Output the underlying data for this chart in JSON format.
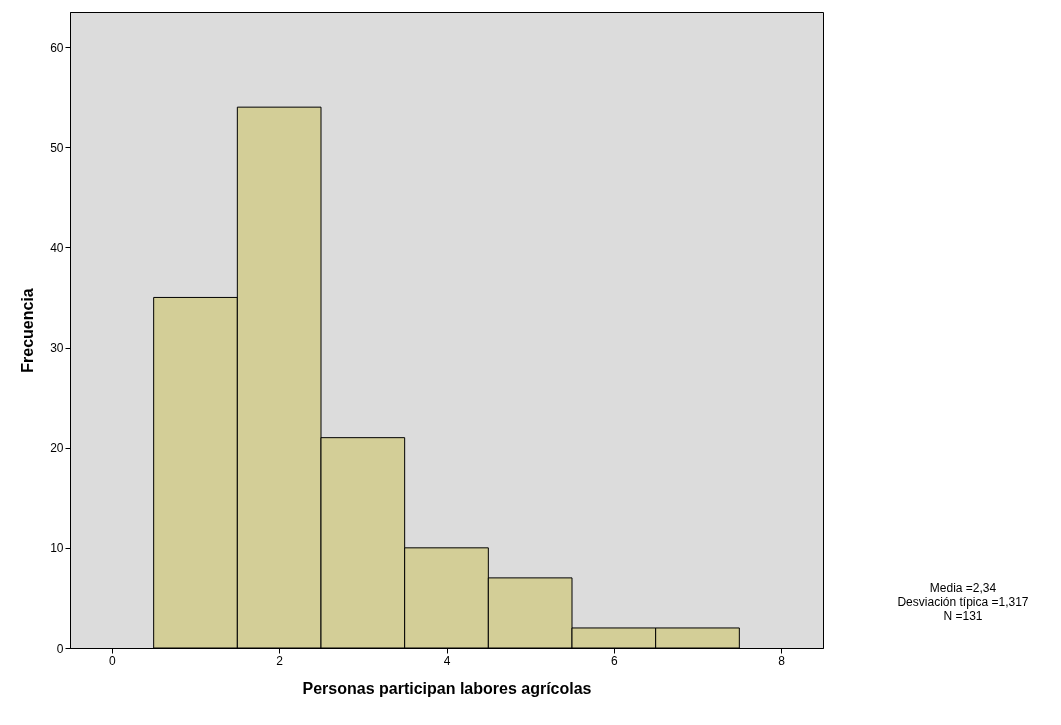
{
  "chart_data": {
    "type": "histogram",
    "bins": [
      0.5,
      1.5,
      2.5,
      3.5,
      4.5,
      5.5,
      6.5,
      7.5
    ],
    "values": [
      35,
      54,
      21,
      10,
      7,
      2,
      2
    ],
    "color": "#d3ce97",
    "xlabel": "Personas participan labores agrícolas",
    "ylabel": "Frecuencia",
    "xlim": [
      -0.5,
      8.5
    ],
    "xticks": [
      0,
      2,
      4,
      6,
      8
    ],
    "ylim": [
      0,
      63.5
    ],
    "yticks": [
      0,
      10,
      20,
      30,
      40,
      50,
      60
    ],
    "grid": false,
    "annotations": [
      "Media =2,34",
      "Desviación típica =1,317",
      "N =131"
    ]
  }
}
